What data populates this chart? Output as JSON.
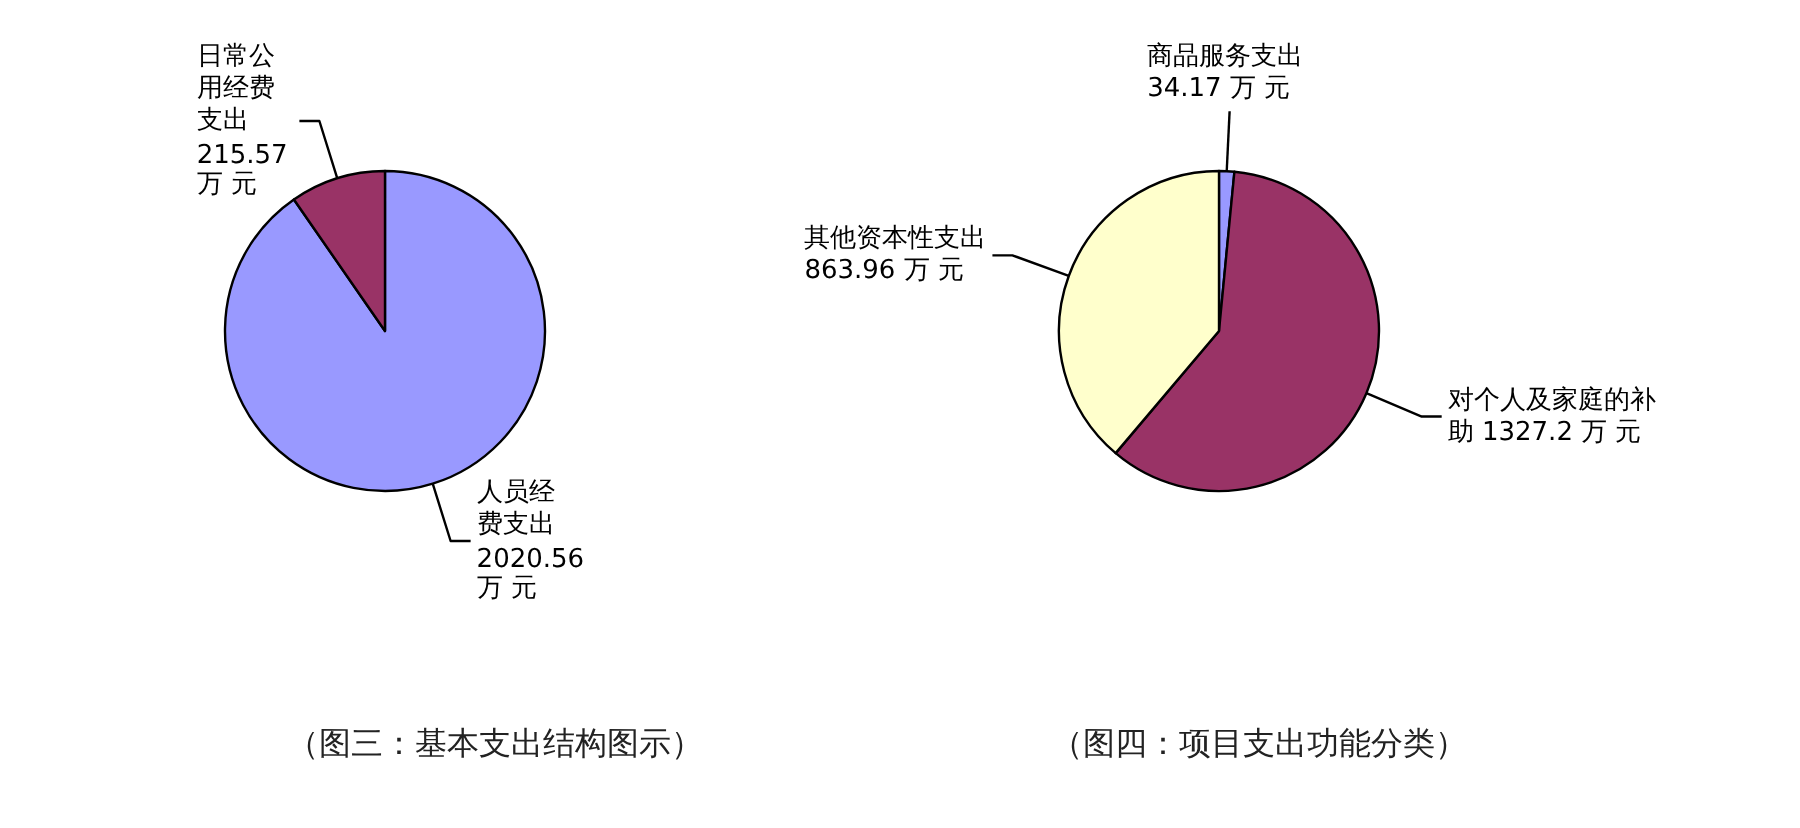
{
  "chart_data": [
    {
      "type": "pie",
      "title": "（图三：基本支出结构图示）",
      "categories": [
        "人员经费支出",
        "日常公用经费支出"
      ],
      "values": [
        2020.56,
        215.57
      ],
      "colors": [
        "#9999ff",
        "#993366"
      ],
      "value_labels": [
        "2020.56 万 元",
        "215.57 万 元"
      ]
    },
    {
      "type": "pie",
      "title": "（图四：项目支出功能分类）",
      "categories": [
        "商品服务支出",
        "对个人及家庭的补助",
        "其他资本性支出"
      ],
      "values": [
        34.17,
        1327.2,
        863.96
      ],
      "colors": [
        "#9999ff",
        "#993366",
        "#ffffcc"
      ],
      "value_labels": [
        "34.17 万 元",
        "1327.2 万 元",
        "863.96 万 元"
      ]
    }
  ]
}
